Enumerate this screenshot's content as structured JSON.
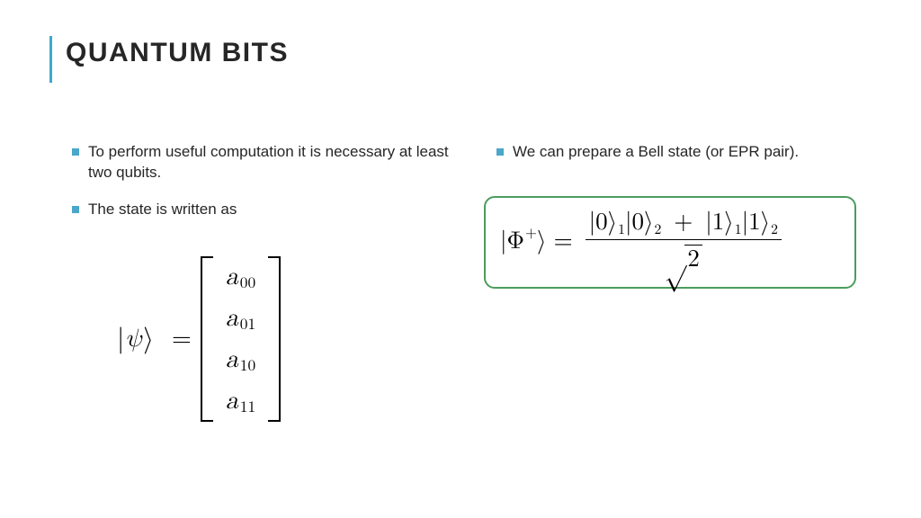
{
  "slide": {
    "title": "QUANTUM BITS",
    "accent_bar_color": "#3fa9cf",
    "bullet_marker_color": "#4aa7c9",
    "title_fontsize": 30,
    "body_fontsize": 17,
    "background_color": "#ffffff",
    "text_color": "#262626"
  },
  "left_col": {
    "bullets": [
      "To perform useful computation it is necessary at least two qubits.",
      "The state is written as"
    ]
  },
  "right_col": {
    "bullets": [
      "We can prepare a Bell state (or EPR pair)."
    ]
  },
  "matrix_eq": {
    "lhs_symbol": "ψ",
    "equals": "=",
    "entries": [
      "a",
      "a",
      "a",
      "a"
    ],
    "subscripts": [
      "00",
      "01",
      "10",
      "11"
    ],
    "bracket_style": "square",
    "font_family": "serif",
    "font_size": 28
  },
  "bell_eq": {
    "border_color": "#4b9c5e",
    "border_radius": 12,
    "font_size": 27,
    "lhs": {
      "symbol": "Φ",
      "superscript": "+"
    },
    "equals": "=",
    "numerator_terms": [
      {
        "kets": [
          {
            "value": "0",
            "sub": "1"
          },
          {
            "value": "0",
            "sub": "2"
          }
        ]
      },
      {
        "kets": [
          {
            "value": "1",
            "sub": "1"
          },
          {
            "value": "1",
            "sub": "2"
          }
        ]
      }
    ],
    "plus": "+",
    "denominator": {
      "sqrt_of": "2"
    }
  }
}
